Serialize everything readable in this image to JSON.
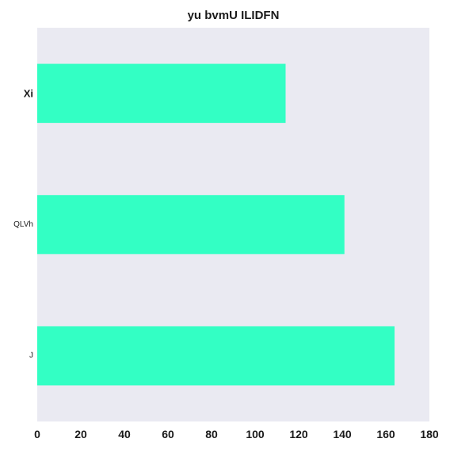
{
  "chart_data": {
    "type": "bar",
    "orientation": "horizontal",
    "title": "yu bvmU ILIDFN",
    "categories": [
      "Xi",
      "QLVh",
      "J"
    ],
    "values": [
      114,
      141,
      164
    ],
    "xlabel": "",
    "ylabel": "",
    "xlim": [
      0,
      180
    ],
    "xticks": [
      0,
      20,
      40,
      60,
      80,
      100,
      120,
      140,
      160,
      180
    ],
    "grid": false,
    "legend": "none",
    "colors": {
      "bar": "#33ffc4",
      "plot_background": "#eaeaf2",
      "text": "#1a1a1a"
    }
  }
}
